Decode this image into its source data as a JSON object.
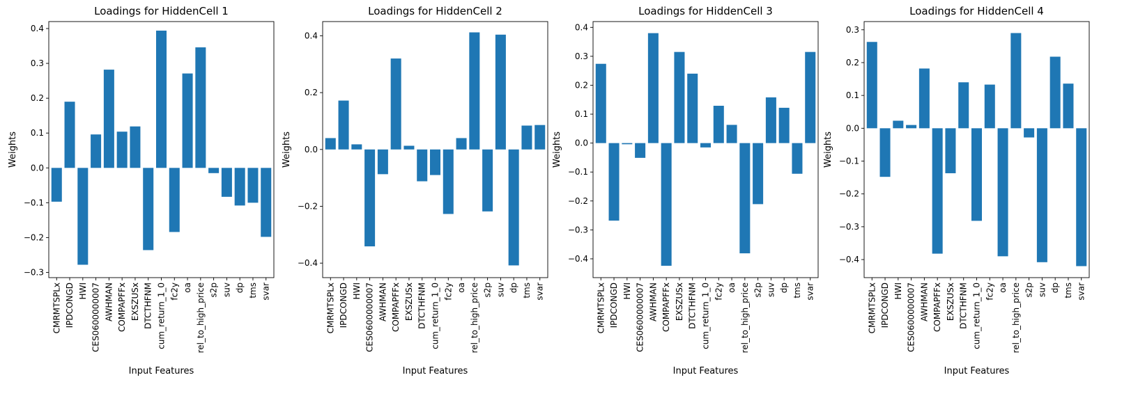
{
  "chart_data": [
    {
      "type": "bar",
      "title": "Loadings for HiddenCell 1",
      "xlabel": "Input Features",
      "ylabel": "Weights",
      "ylim": [
        -0.315,
        0.42
      ],
      "yticks": [
        -0.3,
        -0.2,
        -0.1,
        0.0,
        0.1,
        0.2,
        0.3,
        0.4
      ],
      "ytick_labels": [
        "−0.3",
        "−0.2",
        "−0.1",
        "0.0",
        "0.1",
        "0.2",
        "0.3",
        "0.4"
      ],
      "color": "#1f77b4",
      "categories": [
        "CMRMTSPLx",
        "IPDCONGD",
        "HWI",
        "CES0600000007",
        "AWHMAN",
        "COMPAPFFx",
        "EXSZUSx",
        "DTCTHFNM",
        "cum_return_1_0",
        "fc2y",
        "oa",
        "rel_to_high_price",
        "s2p",
        "suv",
        "dp",
        "tms",
        "svar"
      ],
      "values": [
        -0.097,
        0.19,
        -0.278,
        0.096,
        0.282,
        0.104,
        0.119,
        -0.236,
        0.394,
        -0.184,
        0.271,
        0.346,
        -0.015,
        -0.083,
        -0.108,
        -0.1,
        -0.198
      ]
    },
    {
      "type": "bar",
      "title": "Loadings for HiddenCell 2",
      "xlabel": "Input Features",
      "ylabel": "Weights",
      "ylim": [
        -0.451,
        0.45
      ],
      "yticks": [
        -0.4,
        -0.2,
        0.0,
        0.2,
        0.4
      ],
      "ytick_labels": [
        "−0.4",
        "−0.2",
        "0.0",
        "0.2",
        "0.4"
      ],
      "color": "#1f77b4",
      "categories": [
        "CMRMTSPLx",
        "IPDCONGD",
        "HWI",
        "CES0600000007",
        "AWHMAN",
        "COMPAPFFx",
        "EXSZUSx",
        "DTCTHFNM",
        "cum_return_1_0",
        "fc2y",
        "oa",
        "rel_to_high_price",
        "s2p",
        "suv",
        "dp",
        "tms",
        "svar"
      ],
      "values": [
        0.04,
        0.172,
        0.018,
        -0.341,
        -0.087,
        0.32,
        0.013,
        -0.112,
        -0.09,
        -0.227,
        0.04,
        0.412,
        -0.218,
        0.404,
        -0.408,
        0.084,
        0.086
      ]
    },
    {
      "type": "bar",
      "title": "Loadings for HiddenCell 3",
      "xlabel": "Input Features",
      "ylabel": "Weights",
      "ylim": [
        -0.465,
        0.42
      ],
      "yticks": [
        -0.4,
        -0.3,
        -0.2,
        -0.1,
        0.0,
        0.1,
        0.2,
        0.3,
        0.4
      ],
      "ytick_labels": [
        "−0.4",
        "−0.3",
        "−0.2",
        "−0.1",
        "0.0",
        "0.1",
        "0.2",
        "0.3",
        "0.4"
      ],
      "color": "#1f77b4",
      "categories": [
        "CMRMTSPLx",
        "IPDCONGD",
        "HWI",
        "CES0600000007",
        "AWHMAN",
        "COMPAPFFx",
        "EXSZUSx",
        "DTCTHFNM",
        "cum_return_1_0",
        "fc2y",
        "oa",
        "rel_to_high_price",
        "s2p",
        "suv",
        "dp",
        "tms",
        "svar"
      ],
      "values": [
        0.274,
        -0.268,
        -0.004,
        -0.051,
        0.38,
        -0.424,
        0.315,
        0.24,
        -0.015,
        0.129,
        0.063,
        -0.381,
        -0.211,
        0.158,
        0.122,
        -0.106,
        0.315
      ]
    },
    {
      "type": "bar",
      "title": "Loadings for HiddenCell 4",
      "xlabel": "Input Features",
      "ylabel": "Weights",
      "ylim": [
        -0.455,
        0.325
      ],
      "yticks": [
        -0.4,
        -0.3,
        -0.2,
        -0.1,
        0.0,
        0.1,
        0.2,
        0.3
      ],
      "ytick_labels": [
        "−0.4",
        "−0.3",
        "−0.2",
        "−0.1",
        "0.0",
        "0.1",
        "0.2",
        "0.3"
      ],
      "color": "#1f77b4",
      "categories": [
        "CMRMTSPLx",
        "IPDCONGD",
        "HWI",
        "CES0600000007",
        "AWHMAN",
        "COMPAPFFx",
        "EXSZUSx",
        "DTCTHFNM",
        "cum_return_1_0",
        "fc2y",
        "oa",
        "rel_to_high_price",
        "s2p",
        "suv",
        "dp",
        "tms",
        "svar"
      ],
      "values": [
        0.263,
        -0.148,
        0.023,
        0.01,
        0.182,
        -0.382,
        -0.137,
        0.14,
        -0.282,
        0.133,
        -0.39,
        0.29,
        -0.028,
        -0.408,
        0.218,
        0.136,
        -0.42
      ]
    }
  ]
}
